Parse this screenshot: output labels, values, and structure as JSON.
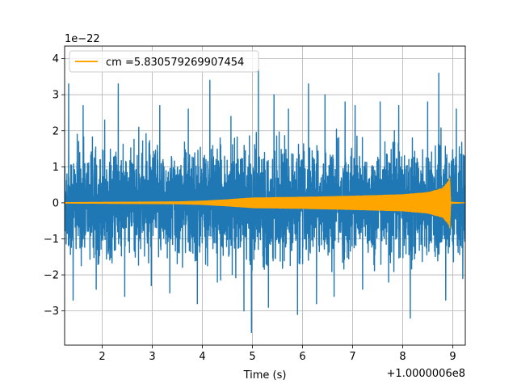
{
  "chart_data": {
    "type": "line",
    "title": "",
    "xlabel": "Time (s)",
    "ylabel": "",
    "x_offset_label": "+1.0000006e8",
    "y_scale_label": "1e−22",
    "xlim": [
      1.25,
      9.25
    ],
    "ylim": [
      -3.95,
      4.35
    ],
    "x_ticks": [
      2,
      3,
      4,
      5,
      6,
      7,
      8,
      9
    ],
    "x_tick_labels": [
      "2",
      "3",
      "4",
      "5",
      "6",
      "7",
      "8",
      "9"
    ],
    "y_ticks": [
      -3,
      -2,
      -1,
      0,
      1,
      2,
      3,
      4
    ],
    "y_tick_labels": [
      "−3",
      "−2",
      "−1",
      "0",
      "1",
      "2",
      "3",
      "4"
    ],
    "grid": true,
    "legend_position": "top-left",
    "series": [
      {
        "name": "",
        "color": "#1f77b4",
        "kind": "noise",
        "x_range": [
          1.25,
          9.25
        ],
        "envelope_abs": 2.0,
        "spikes": [
          {
            "x": 1.33,
            "y": 3.3
          },
          {
            "x": 1.42,
            "y": -2.7
          },
          {
            "x": 1.62,
            "y": 2.7
          },
          {
            "x": 1.88,
            "y": -2.4
          },
          {
            "x": 2.05,
            "y": 2.3
          },
          {
            "x": 2.32,
            "y": 3.3
          },
          {
            "x": 2.45,
            "y": -2.6
          },
          {
            "x": 2.73,
            "y": 2.1
          },
          {
            "x": 2.98,
            "y": -2.3
          },
          {
            "x": 3.15,
            "y": 2.7
          },
          {
            "x": 3.35,
            "y": -2.5
          },
          {
            "x": 3.72,
            "y": 2.6
          },
          {
            "x": 3.9,
            "y": -2.8
          },
          {
            "x": 4.15,
            "y": 3.4
          },
          {
            "x": 4.3,
            "y": -2.2
          },
          {
            "x": 4.57,
            "y": 2.4
          },
          {
            "x": 4.83,
            "y": -3.0
          },
          {
            "x": 4.98,
            "y": -3.6
          },
          {
            "x": 5.12,
            "y": 3.7
          },
          {
            "x": 5.32,
            "y": -2.9
          },
          {
            "x": 5.43,
            "y": 3.0
          },
          {
            "x": 5.72,
            "y": 2.6
          },
          {
            "x": 5.9,
            "y": -3.1
          },
          {
            "x": 6.12,
            "y": 3.3
          },
          {
            "x": 6.28,
            "y": -2.8
          },
          {
            "x": 6.45,
            "y": 3.0
          },
          {
            "x": 6.63,
            "y": -2.6
          },
          {
            "x": 6.85,
            "y": 2.8
          },
          {
            "x": 7.05,
            "y": 2.7
          },
          {
            "x": 7.2,
            "y": -2.4
          },
          {
            "x": 7.55,
            "y": 2.8
          },
          {
            "x": 7.72,
            "y": -2.2
          },
          {
            "x": 7.92,
            "y": 2.7
          },
          {
            "x": 8.15,
            "y": -3.2
          },
          {
            "x": 8.5,
            "y": 2.8
          },
          {
            "x": 8.72,
            "y": 3.6
          },
          {
            "x": 8.86,
            "y": -2.7
          },
          {
            "x": 9.07,
            "y": 2.6
          },
          {
            "x": 9.2,
            "y": -2.1
          }
        ]
      },
      {
        "name": "cm =5.830579269907454",
        "color": "#ffa500",
        "kind": "chirp",
        "x_range": [
          1.25,
          9.25
        ],
        "amplitude_profile": [
          {
            "x": 1.25,
            "y": 0.02
          },
          {
            "x": 3.5,
            "y": 0.04
          },
          {
            "x": 4.0,
            "y": 0.06
          },
          {
            "x": 4.5,
            "y": 0.1
          },
          {
            "x": 5.0,
            "y": 0.15
          },
          {
            "x": 6.0,
            "y": 0.17
          },
          {
            "x": 7.0,
            "y": 0.2
          },
          {
            "x": 8.0,
            "y": 0.24
          },
          {
            "x": 8.5,
            "y": 0.3
          },
          {
            "x": 8.8,
            "y": 0.42
          },
          {
            "x": 8.92,
            "y": 0.62
          },
          {
            "x": 8.94,
            "y": 0.75
          },
          {
            "x": 8.96,
            "y": 0.03
          },
          {
            "x": 9.25,
            "y": 0.01
          }
        ]
      }
    ]
  }
}
